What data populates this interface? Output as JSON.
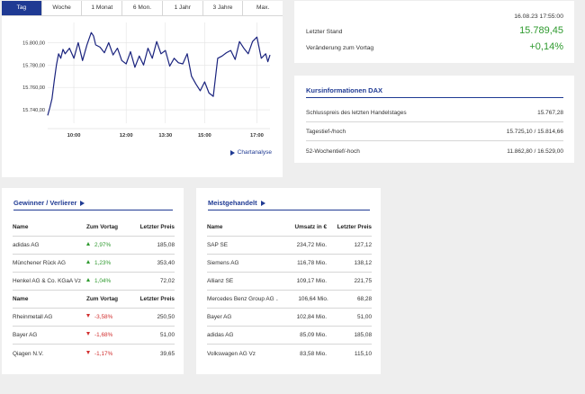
{
  "chart": {
    "tabs": [
      {
        "label": "Tag",
        "active": true
      },
      {
        "label": "Woche",
        "active": false
      },
      {
        "label": "1 Monat",
        "active": false
      },
      {
        "label": "6 Mon.",
        "active": false
      },
      {
        "label": "1 Jahr",
        "active": false
      },
      {
        "label": "3 Jahre",
        "active": false
      },
      {
        "label": "Max.",
        "active": false
      }
    ],
    "chartanalyse_label": "Chartanalyse"
  },
  "chart_data": {
    "type": "line",
    "title": "",
    "xlabel": "",
    "ylabel": "",
    "y_ticks": [
      "15.800,00",
      "15.780,00",
      "15.760,00",
      "15.740,00"
    ],
    "y_tick_values": [
      15800,
      15780,
      15760,
      15740
    ],
    "x_ticks": [
      "10:00",
      "12:00",
      "13:30",
      "15:00",
      "17:00"
    ],
    "x_tick_values": [
      "10:00",
      "12:00",
      "13:30",
      "15:00",
      "17:00"
    ],
    "x_range": [
      "09:00",
      "17:30"
    ],
    "ylim": [
      15728,
      15818
    ],
    "grid": true,
    "series": [
      {
        "name": "",
        "color": "#1a237e",
        "x": [
          "09:00",
          "09:05",
          "09:10",
          "09:15",
          "09:20",
          "09:25",
          "09:30",
          "09:35",
          "09:40",
          "09:50",
          "10:00",
          "10:10",
          "10:20",
          "10:30",
          "10:40",
          "10:45",
          "10:50",
          "11:00",
          "11:10",
          "11:20",
          "11:30",
          "11:40",
          "11:50",
          "12:00",
          "12:10",
          "12:20",
          "12:30",
          "12:40",
          "12:50",
          "13:00",
          "13:10",
          "13:20",
          "13:30",
          "13:40",
          "13:50",
          "14:00",
          "14:10",
          "14:20",
          "14:30",
          "14:40",
          "14:50",
          "15:00",
          "15:10",
          "15:20",
          "15:30",
          "15:40",
          "15:50",
          "16:00",
          "16:10",
          "16:20",
          "16:30",
          "16:40",
          "16:50",
          "17:00",
          "17:10",
          "17:20",
          "17:25",
          "17:30"
        ],
        "y": [
          15735,
          15742,
          15750,
          15766,
          15780,
          15790,
          15786,
          15794,
          15790,
          15795,
          15786,
          15800,
          15784,
          15798,
          15809,
          15806,
          15798,
          15796,
          15791,
          15800,
          15789,
          15795,
          15784,
          15781,
          15792,
          15778,
          15788,
          15780,
          15795,
          15786,
          15801,
          15790,
          15793,
          15779,
          15786,
          15782,
          15781,
          15790,
          15770,
          15763,
          15757,
          15765,
          15755,
          15752,
          15786,
          15788,
          15791,
          15793,
          15785,
          15801,
          15795,
          15790,
          15801,
          15805,
          15786,
          15790,
          15783,
          15789
        ]
      }
    ]
  },
  "stand": {
    "datetime": "16.08.23 17:55:00",
    "letzter_stand_label": "Letzter Stand",
    "letzter_stand_value": "15.789,45",
    "veraenderung_label": "Veränderung zum Vortag",
    "veraenderung_value": "+0,14%"
  },
  "kurs": {
    "title": "Kursinformationen DAX",
    "rows": [
      {
        "label": "Schlusspreis des letzten Handelstages",
        "value": "15.767,28"
      },
      {
        "label": "Tagestief-/hoch",
        "value": "15.725,10 / 15.814,66"
      },
      {
        "label": "52-Wochentief/-hoch",
        "value": "11.862,80 / 16.529,00"
      }
    ]
  },
  "gewinner": {
    "title": "Gewinner / Verlierer",
    "header": {
      "name": "Name",
      "mid": "Zum Vortag",
      "last": "Letzter Preis"
    },
    "rows": [
      {
        "name": "adidas AG",
        "change": "2,97%",
        "price": "185,08",
        "dir": "up"
      },
      {
        "name": "Münchener Rück AG",
        "change": "1,23%",
        "price": "353,40",
        "dir": "up"
      },
      {
        "name": "Henkel AG & Co. KGaA Vz",
        "change": "1,04%",
        "price": "72,02",
        "dir": "up"
      }
    ],
    "header2": {
      "name": "Name",
      "mid": "Zum Vortag",
      "last": "Letzter Preis"
    },
    "rows2": [
      {
        "name": "Rheinmetall AG",
        "change": "-3,58%",
        "price": "250,50",
        "dir": "down"
      },
      {
        "name": "Bayer AG",
        "change": "-1,68%",
        "price": "51,00",
        "dir": "down"
      },
      {
        "name": "Qiagen N.V.",
        "change": "-1,17%",
        "price": "39,65",
        "dir": "down"
      }
    ]
  },
  "meist": {
    "title": "Meistgehandelt",
    "header": {
      "name": "Name",
      "mid": "Umsatz in €",
      "last": "Letzter Preis"
    },
    "rows": [
      {
        "name": "SAP SE",
        "umsatz": "234,72 Mio.",
        "price": "127,12"
      },
      {
        "name": "Siemens AG",
        "umsatz": "116,78 Mio.",
        "price": "138,12"
      },
      {
        "name": "Allianz SE",
        "umsatz": "109,17 Mio.",
        "price": "221,75"
      },
      {
        "name": "Mercedes Benz Group AG ...",
        "umsatz": "106,64 Mio.",
        "price": "68,28"
      },
      {
        "name": "Bayer AG",
        "umsatz": "102,84 Mio.",
        "price": "51,00"
      },
      {
        "name": "adidas AG",
        "umsatz": "85,09 Mio.",
        "price": "185,08"
      },
      {
        "name": "Volkswagen AG Vz",
        "umsatz": "83,58 Mio.",
        "price": "115,10"
      }
    ]
  },
  "colors": {
    "accent": "#1f3a93",
    "positive": "#2e9a2e",
    "negative": "#d23030",
    "line": "#1a237e"
  }
}
